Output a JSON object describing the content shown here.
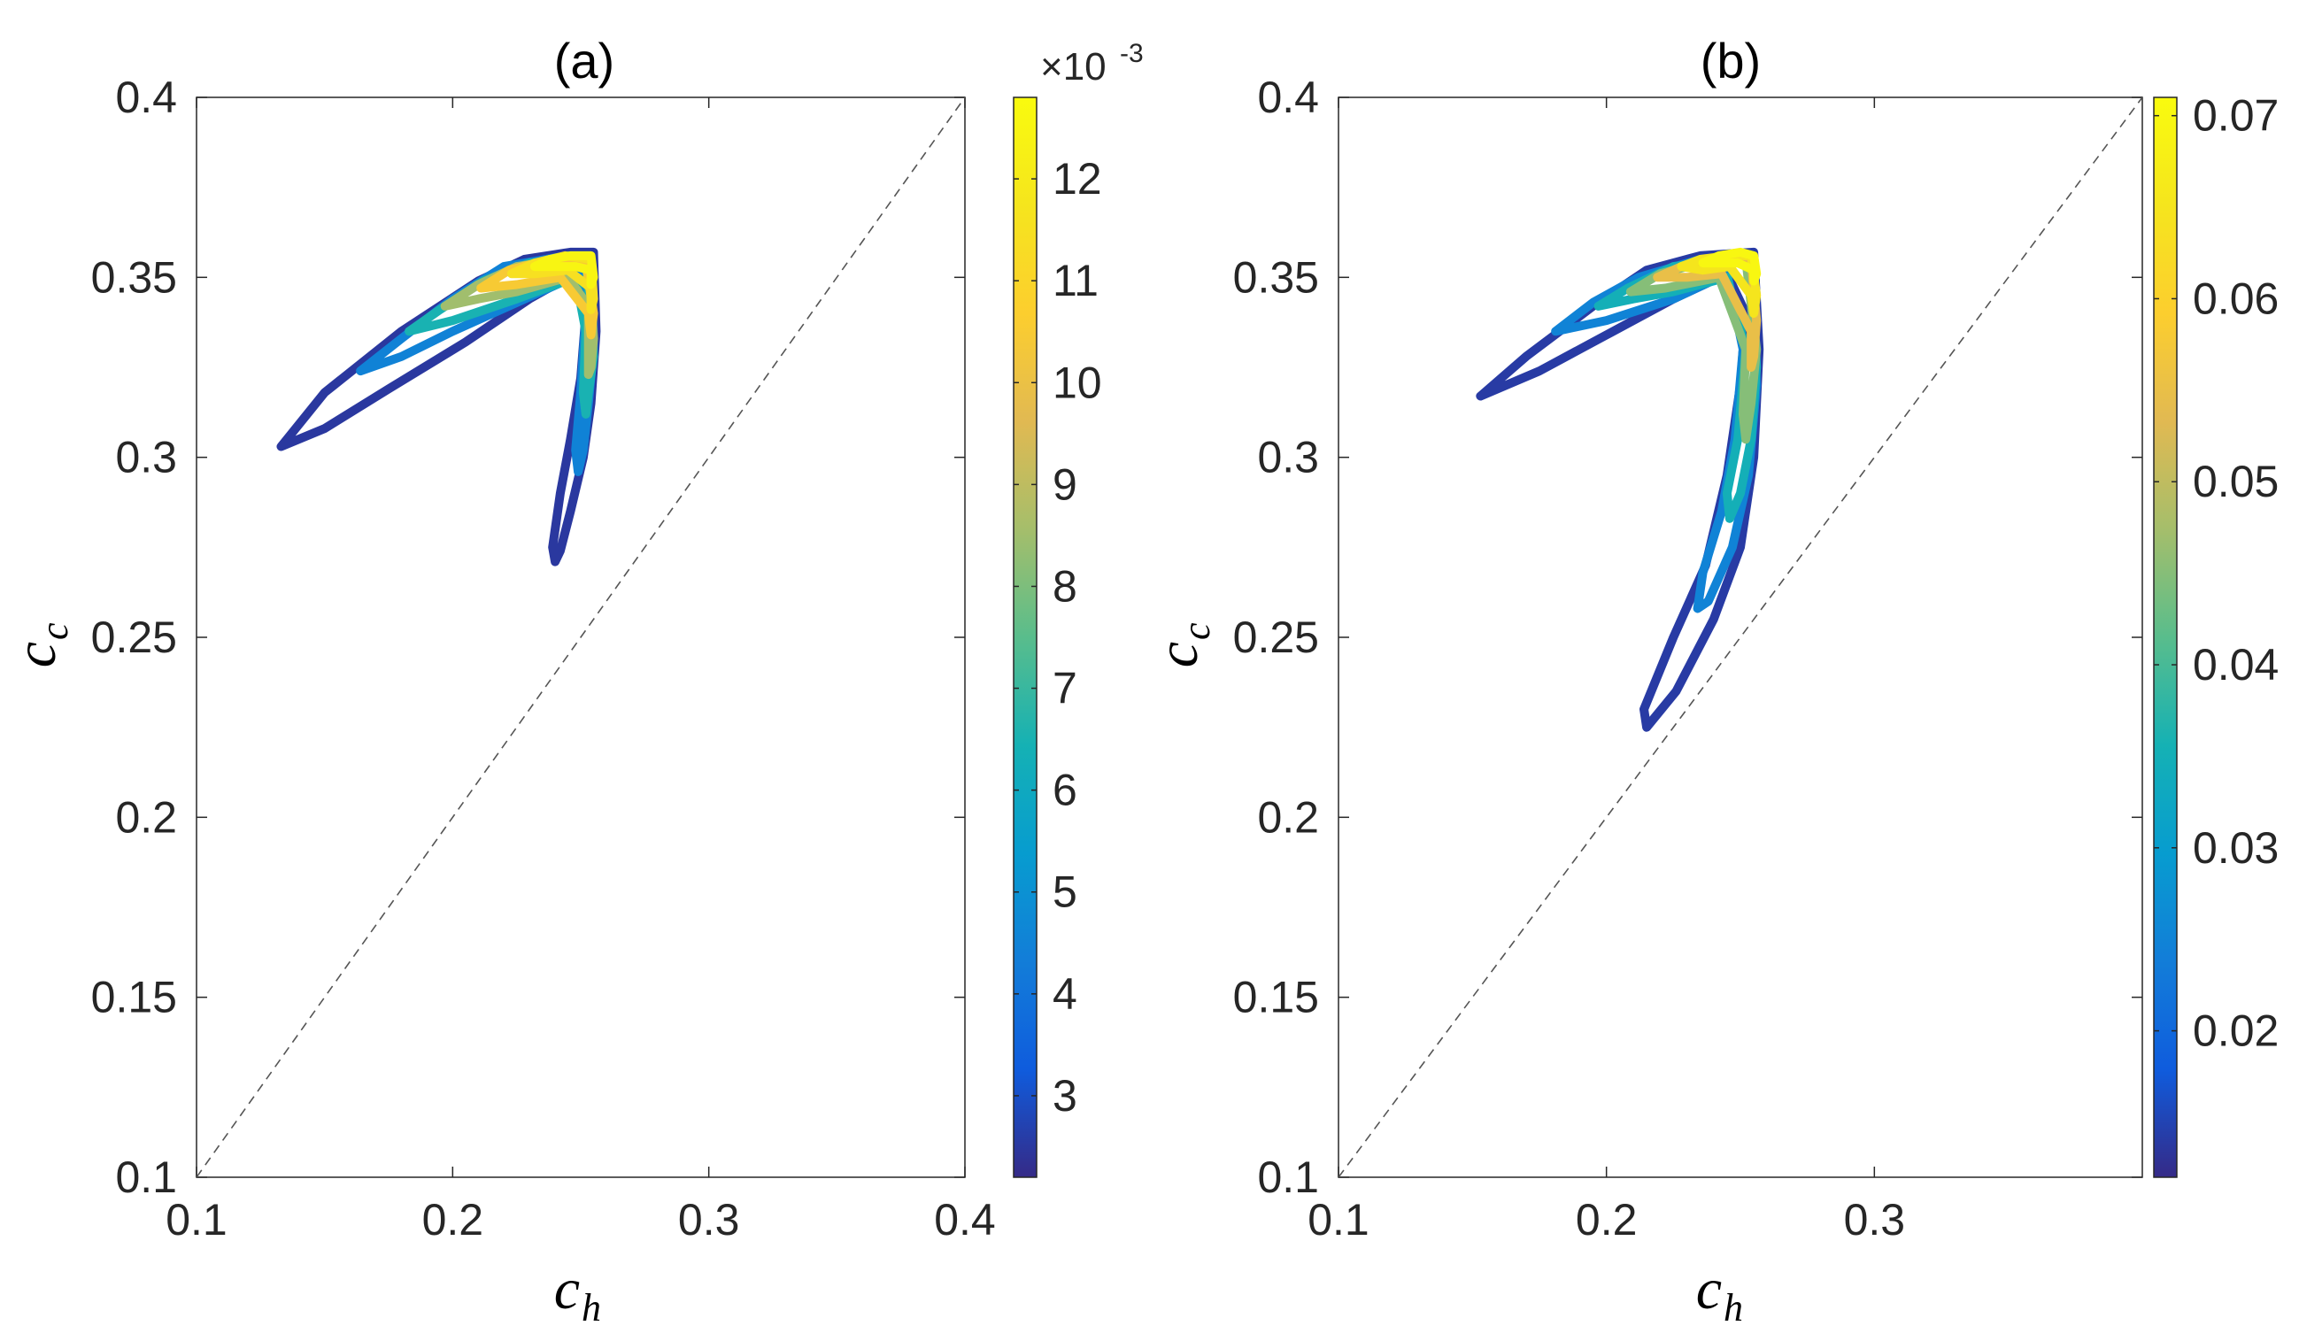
{
  "chart_data": [
    {
      "type": "line",
      "title": "(a)",
      "xlabel": "c_h",
      "xlabel_main": "c",
      "xlabel_sub": "h",
      "ylabel": "c_c",
      "ylabel_main": "c",
      "ylabel_sub": "c",
      "xlim": [
        0.1,
        0.4
      ],
      "ylim": [
        0.1,
        0.4
      ],
      "xticks": [
        0.1,
        0.2,
        0.3,
        0.4
      ],
      "xtick_labels": [
        "0.1",
        "0.2",
        "0.3",
        "0.4"
      ],
      "yticks": [
        0.1,
        0.15,
        0.2,
        0.25,
        0.3,
        0.35,
        0.4
      ],
      "ytick_labels": [
        "0.1",
        "0.15",
        "0.2",
        "0.25",
        "0.3",
        "0.35",
        "0.4"
      ],
      "reference_line": {
        "style": "dashed",
        "color": "#555555",
        "points": [
          [
            0.1,
            0.1
          ],
          [
            0.4,
            0.4
          ]
        ]
      },
      "colorbar": {
        "range": [
          2.2,
          12.8
        ],
        "ticks": [
          3,
          4,
          5,
          6,
          7,
          8,
          9,
          10,
          11,
          12
        ],
        "tick_labels": [
          "3",
          "4",
          "5",
          "6",
          "7",
          "8",
          "9",
          "10",
          "11",
          "12"
        ],
        "exponent_base": "×10",
        "exponent_power": "-3",
        "colormap": "parula"
      },
      "loops": [
        {
          "value": 2.5,
          "tip": [
            0.133,
            0.303
          ],
          "outer": [
            [
              0.15,
              0.318
            ],
            [
              0.18,
              0.335
            ],
            [
              0.21,
              0.349
            ],
            [
              0.228,
              0.355
            ],
            [
              0.246,
              0.357
            ],
            [
              0.255,
              0.357
            ]
          ],
          "inner": [
            [
              0.25,
              0.352
            ],
            [
              0.23,
              0.344
            ],
            [
              0.205,
              0.332
            ],
            [
              0.175,
              0.319
            ],
            [
              0.15,
              0.308
            ]
          ],
          "leg": [
            [
              0.256,
              0.335
            ],
            [
              0.254,
              0.315
            ],
            [
              0.251,
              0.3
            ],
            [
              0.246,
              0.285
            ],
            [
              0.242,
              0.274
            ],
            [
              0.24,
              0.271
            ],
            [
              0.239,
              0.275
            ],
            [
              0.242,
              0.29
            ],
            [
              0.246,
              0.305
            ],
            [
              0.25,
              0.322
            ],
            [
              0.252,
              0.34
            ]
          ]
        },
        {
          "value": 4.5,
          "tip": [
            0.164,
            0.324
          ],
          "outer": [
            [
              0.18,
              0.333
            ],
            [
              0.2,
              0.344
            ],
            [
              0.22,
              0.353
            ],
            [
              0.245,
              0.356
            ],
            [
              0.254,
              0.356
            ]
          ],
          "inner": [
            [
              0.25,
              0.351
            ],
            [
              0.225,
              0.343
            ],
            [
              0.2,
              0.335
            ],
            [
              0.18,
              0.328
            ]
          ],
          "leg": [
            [
              0.255,
              0.33
            ],
            [
              0.253,
              0.315
            ],
            [
              0.251,
              0.302
            ],
            [
              0.249,
              0.296
            ],
            [
              0.248,
              0.302
            ],
            [
              0.25,
              0.318
            ],
            [
              0.252,
              0.34
            ]
          ]
        },
        {
          "value": 6.5,
          "tip": [
            0.183,
            0.335
          ],
          "outer": [
            [
              0.195,
              0.341
            ],
            [
              0.212,
              0.349
            ],
            [
              0.23,
              0.354
            ],
            [
              0.252,
              0.355
            ]
          ],
          "inner": [
            [
              0.248,
              0.35
            ],
            [
              0.225,
              0.344
            ],
            [
              0.2,
              0.338
            ]
          ],
          "leg": [
            [
              0.255,
              0.328
            ],
            [
              0.253,
              0.318
            ],
            [
              0.252,
              0.312
            ],
            [
              0.251,
              0.318
            ],
            [
              0.252,
              0.335
            ]
          ]
        },
        {
          "value": 8.5,
          "tip": [
            0.197,
            0.342
          ],
          "outer": [
            [
              0.21,
              0.348
            ],
            [
              0.225,
              0.353
            ],
            [
              0.245,
              0.355
            ],
            [
              0.253,
              0.354
            ]
          ],
          "inner": [
            [
              0.245,
              0.35
            ],
            [
              0.225,
              0.346
            ],
            [
              0.21,
              0.344
            ]
          ],
          "leg": [
            [
              0.255,
              0.333
            ],
            [
              0.254,
              0.325
            ],
            [
              0.253,
              0.323
            ],
            [
              0.253,
              0.332
            ],
            [
              0.253,
              0.342
            ]
          ]
        },
        {
          "value": 10.5,
          "tip": [
            0.211,
            0.347
          ],
          "outer": [
            [
              0.222,
              0.352
            ],
            [
              0.238,
              0.355
            ],
            [
              0.252,
              0.354
            ]
          ],
          "inner": [
            [
              0.242,
              0.35
            ],
            [
              0.225,
              0.348
            ]
          ],
          "leg": [
            [
              0.255,
              0.34
            ],
            [
              0.254,
              0.334
            ],
            [
              0.253,
              0.34
            ]
          ]
        },
        {
          "value": 11.5,
          "tip": [
            0.223,
            0.351
          ],
          "outer": [
            [
              0.232,
              0.354
            ],
            [
              0.244,
              0.356
            ],
            [
              0.254,
              0.355
            ]
          ],
          "inner": [
            [
              0.245,
              0.352
            ],
            [
              0.232,
              0.351
            ]
          ],
          "leg": [
            [
              0.255,
              0.344
            ],
            [
              0.254,
              0.341
            ],
            [
              0.254,
              0.347
            ]
          ]
        },
        {
          "value": 12.5,
          "tip": [
            0.232,
            0.353
          ],
          "outer": [
            [
              0.238,
              0.355
            ],
            [
              0.246,
              0.356
            ],
            [
              0.254,
              0.356
            ]
          ],
          "inner": [
            [
              0.248,
              0.353
            ],
            [
              0.24,
              0.353
            ]
          ],
          "leg": [
            [
              0.255,
              0.35
            ],
            [
              0.254,
              0.348
            ],
            [
              0.254,
              0.352
            ]
          ]
        }
      ]
    },
    {
      "type": "line",
      "title": "(b)",
      "xlabel": "c_h",
      "xlabel_main": "c",
      "xlabel_sub": "h",
      "ylabel": "c_c",
      "ylabel_main": "c",
      "ylabel_sub": "c",
      "xlim": [
        0.1,
        0.4
      ],
      "ylim": [
        0.1,
        0.4
      ],
      "xticks": [
        0.1,
        0.2,
        0.3
      ],
      "xtick_labels": [
        "0.1",
        "0.2",
        "0.3"
      ],
      "yticks": [
        0.1,
        0.15,
        0.2,
        0.25,
        0.3,
        0.35,
        0.4
      ],
      "ytick_labels": [
        "0.1",
        "0.15",
        "0.2",
        "0.25",
        "0.3",
        "0.35",
        "0.4"
      ],
      "reference_line": {
        "style": "dashed",
        "color": "#555555",
        "points": [
          [
            0.1,
            0.1
          ],
          [
            0.4,
            0.4
          ]
        ]
      },
      "colorbar": {
        "range": [
          0.012,
          0.071
        ],
        "ticks": [
          0.02,
          0.03,
          0.04,
          0.05,
          0.06,
          0.07
        ],
        "tick_labels": [
          "0.02",
          "0.03",
          "0.04",
          "0.05",
          "0.06",
          "0.07"
        ],
        "colormap": "parula"
      },
      "loops": [
        {
          "value": 0.014,
          "tip": [
            0.153,
            0.317
          ],
          "outer": [
            [
              0.17,
              0.328
            ],
            [
              0.195,
              0.342
            ],
            [
              0.215,
              0.352
            ],
            [
              0.235,
              0.356
            ],
            [
              0.255,
              0.357
            ]
          ],
          "inner": [
            [
              0.245,
              0.351
            ],
            [
              0.225,
              0.344
            ],
            [
              0.2,
              0.334
            ],
            [
              0.175,
              0.324
            ]
          ],
          "leg": [
            [
              0.257,
              0.33
            ],
            [
              0.255,
              0.3
            ],
            [
              0.25,
              0.275
            ],
            [
              0.24,
              0.255
            ],
            [
              0.226,
              0.235
            ],
            [
              0.215,
              0.225
            ],
            [
              0.214,
              0.23
            ],
            [
              0.225,
              0.25
            ],
            [
              0.237,
              0.27
            ],
            [
              0.245,
              0.295
            ],
            [
              0.25,
              0.32
            ],
            [
              0.252,
              0.34
            ]
          ]
        },
        {
          "value": 0.025,
          "tip": [
            0.181,
            0.335
          ],
          "outer": [
            [
              0.195,
              0.343
            ],
            [
              0.212,
              0.35
            ],
            [
              0.235,
              0.355
            ],
            [
              0.254,
              0.356
            ]
          ],
          "inner": [
            [
              0.245,
              0.351
            ],
            [
              0.225,
              0.344
            ],
            [
              0.2,
              0.338
            ]
          ],
          "leg": [
            [
              0.256,
              0.32
            ],
            [
              0.253,
              0.295
            ],
            [
              0.247,
              0.275
            ],
            [
              0.238,
              0.26
            ],
            [
              0.234,
              0.258
            ],
            [
              0.236,
              0.268
            ],
            [
              0.243,
              0.285
            ],
            [
              0.248,
              0.305
            ],
            [
              0.251,
              0.33
            ]
          ]
        },
        {
          "value": 0.035,
          "tip": [
            0.197,
            0.342
          ],
          "outer": [
            [
              0.208,
              0.347
            ],
            [
              0.225,
              0.353
            ],
            [
              0.245,
              0.355
            ],
            [
              0.254,
              0.355
            ]
          ],
          "inner": [
            [
              0.245,
              0.35
            ],
            [
              0.225,
              0.346
            ],
            [
              0.21,
              0.344
            ]
          ],
          "leg": [
            [
              0.256,
              0.325
            ],
            [
              0.254,
              0.305
            ],
            [
              0.25,
              0.29
            ],
            [
              0.246,
              0.283
            ],
            [
              0.245,
              0.29
            ],
            [
              0.249,
              0.305
            ],
            [
              0.252,
              0.33
            ]
          ]
        },
        {
          "value": 0.045,
          "tip": [
            0.209,
            0.346
          ],
          "outer": [
            [
              0.22,
              0.351
            ],
            [
              0.235,
              0.354
            ],
            [
              0.252,
              0.355
            ]
          ],
          "inner": [
            [
              0.242,
              0.35
            ],
            [
              0.222,
              0.347
            ]
          ],
          "leg": [
            [
              0.256,
              0.33
            ],
            [
              0.254,
              0.315
            ],
            [
              0.252,
              0.305
            ],
            [
              0.251,
              0.312
            ],
            [
              0.252,
              0.33
            ]
          ]
        },
        {
          "value": 0.055,
          "tip": [
            0.219,
            0.35
          ],
          "outer": [
            [
              0.228,
              0.353
            ],
            [
              0.242,
              0.355
            ],
            [
              0.254,
              0.355
            ]
          ],
          "inner": [
            [
              0.243,
              0.351
            ],
            [
              0.23,
              0.35
            ]
          ],
          "leg": [
            [
              0.256,
              0.338
            ],
            [
              0.255,
              0.328
            ],
            [
              0.254,
              0.325
            ],
            [
              0.254,
              0.335
            ]
          ]
        },
        {
          "value": 0.065,
          "tip": [
            0.228,
            0.353
          ],
          "outer": [
            [
              0.235,
              0.355
            ],
            [
              0.246,
              0.356
            ],
            [
              0.254,
              0.356
            ]
          ],
          "inner": [
            [
              0.246,
              0.353
            ],
            [
              0.236,
              0.352
            ]
          ],
          "leg": [
            [
              0.256,
              0.345
            ],
            [
              0.255,
              0.34
            ],
            [
              0.254,
              0.345
            ]
          ]
        },
        {
          "value": 0.07,
          "tip": [
            0.236,
            0.354
          ],
          "outer": [
            [
              0.242,
              0.356
            ],
            [
              0.25,
              0.357
            ],
            [
              0.255,
              0.356
            ]
          ],
          "inner": [
            [
              0.249,
              0.354
            ],
            [
              0.242,
              0.354
            ]
          ],
          "leg": [
            [
              0.256,
              0.351
            ],
            [
              0.255,
              0.349
            ],
            [
              0.255,
              0.352
            ]
          ]
        }
      ]
    }
  ]
}
